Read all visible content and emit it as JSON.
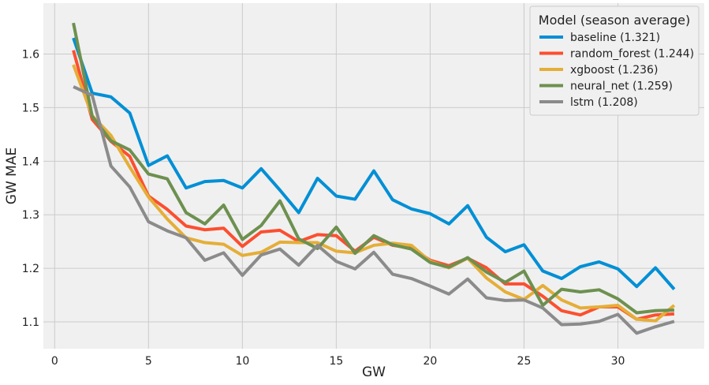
{
  "chart_data": {
    "type": "line",
    "xlabel": "GW",
    "ylabel": "GW MAE",
    "xlim": [
      -0.6,
      34.6
    ],
    "ylim": [
      1.05,
      1.695
    ],
    "xticks": [
      0,
      5,
      10,
      15,
      20,
      25,
      30
    ],
    "yticks": [
      1.1,
      1.2,
      1.3,
      1.4,
      1.5,
      1.6
    ],
    "ytick_labels": [
      "1.1",
      "1.2",
      "1.3",
      "1.4",
      "1.5",
      "1.6"
    ],
    "grid": true,
    "legend_title": "Model (season average)",
    "legend_position": "top-right",
    "x": [
      1,
      2,
      3,
      4,
      5,
      6,
      7,
      8,
      9,
      10,
      11,
      12,
      13,
      14,
      15,
      16,
      17,
      18,
      19,
      20,
      21,
      22,
      23,
      24,
      25,
      26,
      27,
      28,
      29,
      30,
      31,
      32,
      33
    ],
    "series": [
      {
        "name": "baseline (1.321)",
        "color": "#008fd5",
        "values": [
          1.63,
          1.527,
          1.52,
          1.49,
          1.392,
          1.41,
          1.35,
          1.362,
          1.364,
          1.35,
          1.386,
          1.346,
          1.304,
          1.368,
          1.335,
          1.329,
          1.382,
          1.328,
          1.311,
          1.302,
          1.283,
          1.317,
          1.258,
          1.231,
          1.244,
          1.195,
          1.181,
          1.203,
          1.212,
          1.199,
          1.166,
          1.201,
          1.161
        ]
      },
      {
        "name": "random_forest (1.244)",
        "color": "#fc4f30",
        "values": [
          1.607,
          1.478,
          1.437,
          1.409,
          1.335,
          1.31,
          1.279,
          1.272,
          1.275,
          1.241,
          1.268,
          1.271,
          1.25,
          1.263,
          1.261,
          1.232,
          1.258,
          1.243,
          1.238,
          1.215,
          1.205,
          1.219,
          1.201,
          1.171,
          1.171,
          1.148,
          1.121,
          1.113,
          1.128,
          1.128,
          1.105,
          1.113,
          1.115
        ]
      },
      {
        "name": "xgboost (1.236)",
        "color": "#e5ae38",
        "values": [
          1.58,
          1.485,
          1.448,
          1.389,
          1.333,
          1.292,
          1.257,
          1.248,
          1.245,
          1.224,
          1.23,
          1.249,
          1.248,
          1.248,
          1.232,
          1.229,
          1.243,
          1.247,
          1.243,
          1.213,
          1.201,
          1.219,
          1.182,
          1.156,
          1.142,
          1.168,
          1.141,
          1.126,
          1.128,
          1.131,
          1.105,
          1.102,
          1.131
        ]
      },
      {
        "name": "neural_net (1.259)",
        "color": "#6d904f",
        "values": [
          1.658,
          1.484,
          1.438,
          1.421,
          1.376,
          1.367,
          1.304,
          1.283,
          1.318,
          1.254,
          1.28,
          1.326,
          1.255,
          1.237,
          1.277,
          1.228,
          1.261,
          1.244,
          1.236,
          1.211,
          1.202,
          1.22,
          1.193,
          1.174,
          1.195,
          1.131,
          1.161,
          1.156,
          1.16,
          1.143,
          1.117,
          1.121,
          1.122
        ]
      },
      {
        "name": "lstm (1.208)",
        "color": "#8b8b8b",
        "values": [
          1.539,
          1.523,
          1.391,
          1.352,
          1.287,
          1.27,
          1.257,
          1.215,
          1.229,
          1.187,
          1.225,
          1.236,
          1.206,
          1.243,
          1.213,
          1.199,
          1.23,
          1.189,
          1.181,
          1.167,
          1.152,
          1.18,
          1.145,
          1.14,
          1.141,
          1.126,
          1.095,
          1.096,
          1.101,
          1.114,
          1.079,
          1.091,
          1.101
        ]
      }
    ]
  }
}
